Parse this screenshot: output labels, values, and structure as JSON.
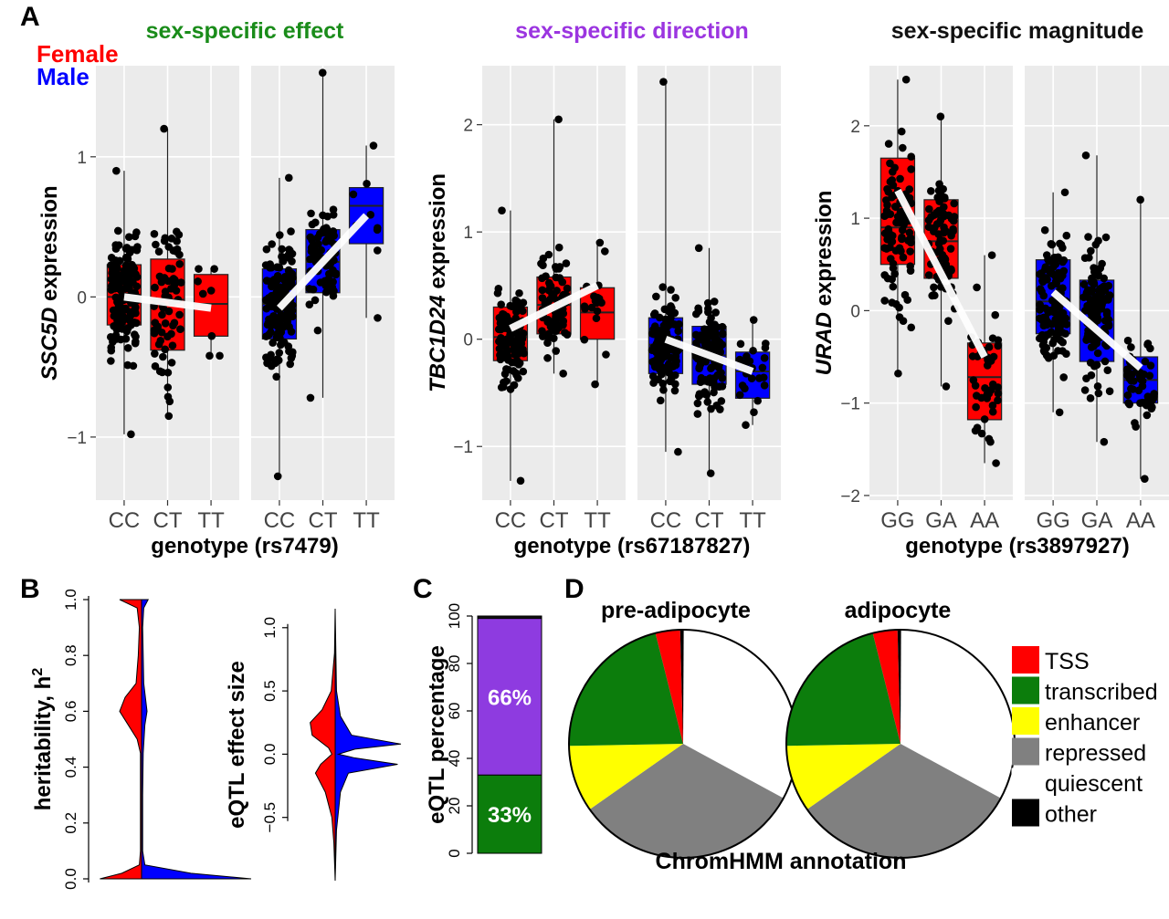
{
  "figure": {
    "panel_labels": [
      "A",
      "B",
      "C",
      "D"
    ],
    "legend_A": {
      "female": "Female",
      "male": "Male"
    },
    "colors": {
      "female": "#ff0000",
      "male": "#0000ff",
      "panel_bg": "#ebebeb",
      "grid": "#ffffff",
      "title_effect": "#1a8c1a",
      "title_direction": "#9b35e0",
      "title_magnitude": "#111111"
    }
  },
  "chart_data": [
    {
      "type": "box",
      "panel": "A1",
      "title": "sex-specific effect",
      "ylabel_gene": "SSC5D",
      "ylabel_rest": " expression",
      "xlabel": "genotype (rs7479)",
      "ylim": [
        -1.45,
        1.65
      ],
      "yticks": [
        -1,
        0,
        1
      ],
      "ytick_labels": [
        "−1",
        "0",
        "1"
      ],
      "facets": [
        {
          "sex": "female",
          "categories": [
            "CC",
            "CT",
            "TT"
          ],
          "boxes": [
            {
              "q1": -0.2,
              "median": 0.0,
              "q3": 0.23,
              "min": -0.98,
              "max": 0.9,
              "n": 150
            },
            {
              "q1": -0.38,
              "median": -0.02,
              "q3": 0.27,
              "min": -0.85,
              "max": 1.2,
              "n": 70
            },
            {
              "q1": -0.28,
              "median": -0.05,
              "q3": 0.16,
              "min": -0.42,
              "max": 0.2,
              "n": 8
            }
          ],
          "trend": [
            0.0,
            -0.05,
            -0.08
          ]
        },
        {
          "sex": "male",
          "categories": [
            "CC",
            "CT",
            "TT"
          ],
          "boxes": [
            {
              "q1": -0.3,
              "median": -0.05,
              "q3": 0.2,
              "min": -1.28,
              "max": 0.85,
              "n": 160
            },
            {
              "q1": 0.03,
              "median": 0.25,
              "q3": 0.48,
              "min": -0.72,
              "max": 1.6,
              "n": 80
            },
            {
              "q1": 0.38,
              "median": 0.65,
              "q3": 0.78,
              "min": -0.15,
              "max": 1.08,
              "n": 9
            }
          ],
          "trend": [
            -0.08,
            0.25,
            0.58
          ]
        }
      ]
    },
    {
      "type": "box",
      "panel": "A2",
      "title": "sex-specific direction",
      "ylabel_gene": "TBC1D24",
      "ylabel_rest": " expression",
      "xlabel": "genotype (rs67187827)",
      "ylim": [
        -1.5,
        2.55
      ],
      "yticks": [
        -1,
        0,
        1,
        2
      ],
      "ytick_labels": [
        "−1",
        "0",
        "1",
        "2"
      ],
      "facets": [
        {
          "sex": "female",
          "categories": [
            "CC",
            "CT",
            "TT"
          ],
          "boxes": [
            {
              "q1": -0.2,
              "median": 0.02,
              "q3": 0.3,
              "min": -1.32,
              "max": 1.2,
              "n": 110
            },
            {
              "q1": 0.05,
              "median": 0.32,
              "q3": 0.58,
              "min": -0.32,
              "max": 2.05,
              "n": 70
            },
            {
              "q1": 0.0,
              "median": 0.25,
              "q3": 0.48,
              "min": -0.42,
              "max": 0.9,
              "n": 18
            }
          ],
          "trend": [
            0.1,
            0.3,
            0.5
          ]
        },
        {
          "sex": "male",
          "categories": [
            "CC",
            "CT",
            "TT"
          ],
          "boxes": [
            {
              "q1": -0.32,
              "median": -0.05,
              "q3": 0.2,
              "min": -1.05,
              "max": 2.4,
              "n": 110
            },
            {
              "q1": -0.42,
              "median": -0.15,
              "q3": 0.12,
              "min": -1.25,
              "max": 0.85,
              "n": 110
            },
            {
              "q1": -0.55,
              "median": -0.3,
              "q3": -0.12,
              "min": -0.8,
              "max": 0.18,
              "n": 25
            }
          ],
          "trend": [
            0.0,
            -0.15,
            -0.3
          ]
        }
      ]
    },
    {
      "type": "box",
      "panel": "A3",
      "title": "sex-specific magnitude",
      "ylabel_gene": "URAD",
      "ylabel_rest": " expression",
      "xlabel": "genotype (rs3897927)",
      "ylim": [
        -2.05,
        2.65
      ],
      "yticks": [
        -2,
        -1,
        0,
        1,
        2
      ],
      "ytick_labels": [
        "−2",
        "−1",
        "0",
        "1",
        "2"
      ],
      "facets": [
        {
          "sex": "female",
          "categories": [
            "GG",
            "GA",
            "AA"
          ],
          "boxes": [
            {
              "q1": 0.5,
              "median": 0.9,
              "q3": 1.65,
              "min": -0.68,
              "max": 2.5,
              "n": 90
            },
            {
              "q1": 0.35,
              "median": 0.75,
              "q3": 1.2,
              "min": -0.82,
              "max": 2.1,
              "n": 80
            },
            {
              "q1": -1.18,
              "median": -0.72,
              "q3": -0.35,
              "min": -1.65,
              "max": 0.6,
              "n": 45
            }
          ],
          "trend": [
            1.3,
            0.4,
            -0.5
          ]
        },
        {
          "sex": "male",
          "categories": [
            "GG",
            "GA",
            "AA"
          ],
          "boxes": [
            {
              "q1": -0.25,
              "median": 0.1,
              "q3": 0.55,
              "min": -1.1,
              "max": 1.28,
              "n": 120
            },
            {
              "q1": -0.55,
              "median": -0.1,
              "q3": 0.33,
              "min": -1.42,
              "max": 1.68,
              "n": 110
            },
            {
              "q1": -1.0,
              "median": -0.75,
              "q3": -0.5,
              "min": -1.82,
              "max": 1.2,
              "n": 55
            }
          ],
          "trend": [
            0.2,
            -0.22,
            -0.62
          ]
        }
      ]
    },
    {
      "type": "violin",
      "panel": "B1",
      "ylabel": "heritability, h",
      "ylabel_sup": "2",
      "ylim": [
        0,
        1
      ],
      "yticks": [
        0.0,
        0.2,
        0.4,
        0.6,
        0.8,
        1.0
      ],
      "ytick_labels": [
        "0.0",
        "0.2",
        "0.4",
        "0.6",
        "0.8",
        "1.0"
      ],
      "female_density": [
        [
          0.0,
          0.38
        ],
        [
          0.02,
          0.18
        ],
        [
          0.05,
          0.02
        ],
        [
          0.1,
          0.01
        ],
        [
          0.3,
          0.01
        ],
        [
          0.45,
          0.01
        ],
        [
          0.5,
          0.04
        ],
        [
          0.55,
          0.12
        ],
        [
          0.6,
          0.2
        ],
        [
          0.65,
          0.15
        ],
        [
          0.7,
          0.05
        ],
        [
          0.8,
          0.03
        ],
        [
          0.9,
          0.02
        ],
        [
          0.97,
          0.04
        ],
        [
          1.0,
          0.2
        ]
      ],
      "male_density": [
        [
          0.0,
          1.0
        ],
        [
          0.02,
          0.45
        ],
        [
          0.05,
          0.03
        ],
        [
          0.1,
          0.01
        ],
        [
          0.3,
          0.01
        ],
        [
          0.45,
          0.015
        ],
        [
          0.55,
          0.03
        ],
        [
          0.6,
          0.05
        ],
        [
          0.7,
          0.02
        ],
        [
          0.9,
          0.01
        ],
        [
          0.97,
          0.02
        ],
        [
          1.0,
          0.06
        ]
      ]
    },
    {
      "type": "violin",
      "panel": "B2",
      "ylabel": "eQTL effect size",
      "ylim": [
        -1.0,
        1.15
      ],
      "yticks": [
        -0.5,
        0.0,
        0.5,
        1.0
      ],
      "ytick_labels": [
        "−0.5",
        "0.0",
        "0.5",
        "1.0"
      ],
      "female_density": [
        [
          -1.0,
          0.0
        ],
        [
          -0.7,
          0.02
        ],
        [
          -0.5,
          0.05
        ],
        [
          -0.3,
          0.15
        ],
        [
          -0.15,
          0.3
        ],
        [
          -0.08,
          0.22
        ],
        [
          0.0,
          0.05
        ],
        [
          0.05,
          0.1
        ],
        [
          0.15,
          0.35
        ],
        [
          0.25,
          0.38
        ],
        [
          0.35,
          0.2
        ],
        [
          0.5,
          0.06
        ],
        [
          0.8,
          0.01
        ],
        [
          1.15,
          0.0
        ]
      ],
      "male_density": [
        [
          -1.0,
          0.0
        ],
        [
          -0.6,
          0.02
        ],
        [
          -0.3,
          0.08
        ],
        [
          -0.15,
          0.2
        ],
        [
          -0.08,
          0.95
        ],
        [
          -0.03,
          0.3
        ],
        [
          0.0,
          0.05
        ],
        [
          0.04,
          0.3
        ],
        [
          0.08,
          1.0
        ],
        [
          0.15,
          0.25
        ],
        [
          0.3,
          0.08
        ],
        [
          0.5,
          0.02
        ],
        [
          1.15,
          0.0
        ]
      ]
    },
    {
      "type": "stacked_bar",
      "panel": "C",
      "ylabel": "eQTL percentage",
      "ylim": [
        0,
        100
      ],
      "yticks": [
        0,
        20,
        40,
        60,
        80,
        100
      ],
      "segments": [
        {
          "label": "33%",
          "value": 33,
          "color": "#0c7d0c"
        },
        {
          "label": "66%",
          "value": 66,
          "color": "#8e3be0"
        },
        {
          "label": "",
          "value": 1,
          "color": "#111111"
        }
      ]
    },
    {
      "type": "pie",
      "panel": "D",
      "xlabel": "ChromHMM annotation",
      "categories": [
        "TSS",
        "transcribed",
        "enhancer",
        "repressed",
        "quiescent",
        "other"
      ],
      "colors": [
        "#ff0000",
        "#0c7d0c",
        "#ffff00",
        "#808080",
        "#ffffff",
        "#000000"
      ],
      "pies": [
        {
          "title": "pre-adipocyte",
          "values": [
            3.5,
            21.5,
            9.5,
            32.5,
            33.0,
            0.5
          ]
        },
        {
          "title": "adipocyte",
          "values": [
            3.5,
            21.5,
            9.5,
            32.5,
            33.0,
            0.5
          ]
        }
      ]
    }
  ]
}
